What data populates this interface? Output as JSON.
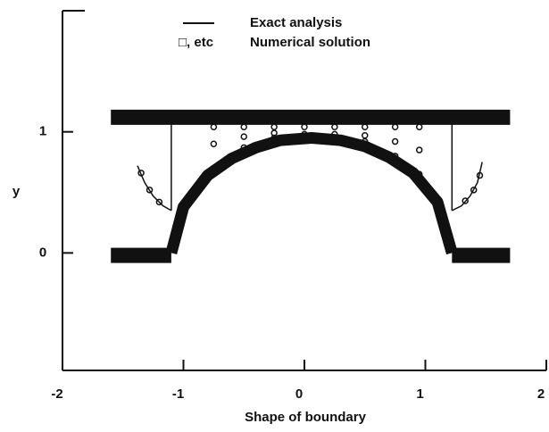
{
  "chart_data": {
    "type": "line",
    "xlabel": "Shape of boundary",
    "ylabel": "y",
    "xlim": [
      -2,
      2
    ],
    "ylim": [
      -0.97,
      2.0
    ],
    "xticks": [
      -2,
      -1,
      0,
      1,
      2
    ],
    "yticks": [
      0,
      1
    ],
    "series": [
      {
        "name": "Exact analysis",
        "color": "#111111",
        "x": [
          -1.38,
          -1.32,
          -1.25,
          -1.17,
          -1.1,
          null,
          -1.1,
          -1.1,
          null,
          1.22,
          1.22,
          null,
          1.22,
          1.3,
          1.37,
          1.43,
          1.47
        ],
        "values": [
          0.72,
          0.58,
          0.47,
          0.39,
          0.35,
          null,
          0.35,
          1.07,
          null,
          0.35,
          1.07,
          null,
          0.35,
          0.39,
          0.47,
          0.58,
          0.75
        ]
      },
      {
        "name": "Numerical solution",
        "marker_label": "□, etc",
        "color": "#111111",
        "x": [
          -0.75,
          -0.75,
          -0.75,
          -0.5,
          -0.5,
          -0.5,
          -0.25,
          -0.25,
          -0.25,
          0,
          0,
          0.25,
          0.25,
          0.5,
          0.5,
          0.5,
          0.75,
          0.75,
          0.75,
          0.95,
          0.95,
          0.95,
          -1.35,
          -1.28,
          -1.2,
          1.33,
          1.4,
          1.45
        ],
        "values": [
          1.04,
          0.9,
          0.7,
          1.04,
          0.96,
          0.87,
          1.04,
          0.99,
          0.95,
          1.04,
          0.98,
          1.04,
          0.98,
          1.04,
          0.97,
          0.92,
          1.04,
          0.92,
          0.8,
          1.04,
          0.85,
          0.65,
          0.66,
          0.52,
          0.42,
          0.43,
          0.52,
          0.64
        ]
      }
    ],
    "boundaries": [
      {
        "x": [
          -1.6,
          1.7
        ],
        "values": [
          1.12,
          1.12
        ]
      },
      {
        "x": [
          -1.6,
          -1.1
        ],
        "values": [
          -0.02,
          -0.02
        ]
      },
      {
        "x": [
          1.22,
          1.7
        ],
        "values": [
          -0.02,
          -0.02
        ]
      },
      {
        "x": [
          -1.1,
          -1.0,
          -0.8,
          -0.6,
          -0.4,
          -0.2,
          0.06,
          0.3,
          0.5,
          0.7,
          0.9,
          1.1,
          1.22
        ],
        "values": [
          0,
          0.38,
          0.64,
          0.78,
          0.87,
          0.93,
          0.95,
          0.93,
          0.88,
          0.79,
          0.66,
          0.42,
          0
        ]
      }
    ]
  }
}
